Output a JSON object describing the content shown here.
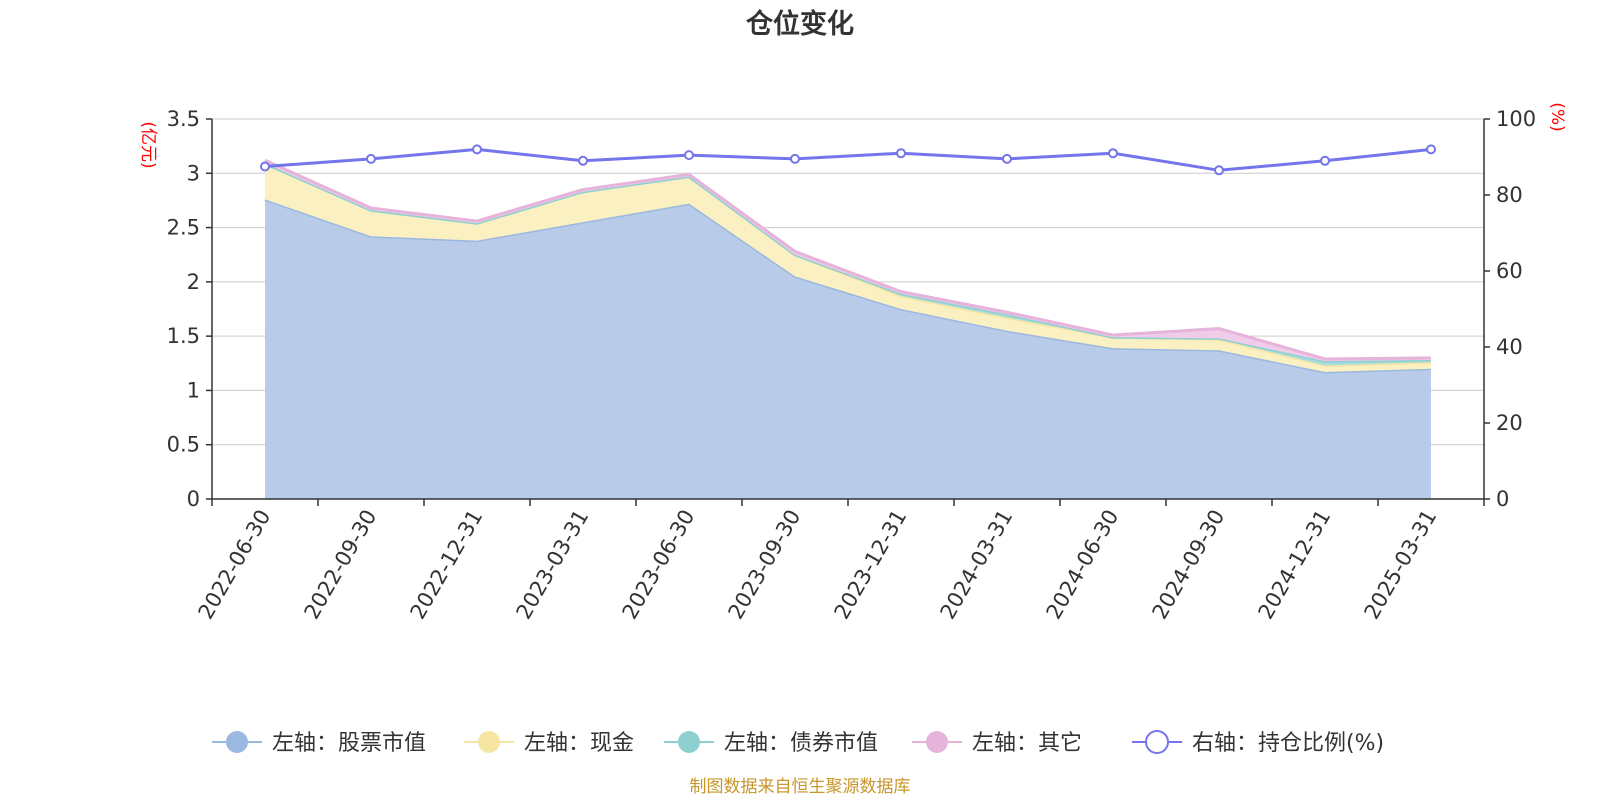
{
  "chart_data": {
    "type": "area",
    "title": "仓位变化",
    "source": "制图数据来自恒生聚源数据库",
    "categories": [
      "2022-06-30",
      "2022-09-30",
      "2022-12-31",
      "2023-03-31",
      "2023-06-30",
      "2023-09-30",
      "2023-12-31",
      "2024-03-31",
      "2024-06-30",
      "2024-09-30",
      "2024-12-31",
      "2025-03-31"
    ],
    "left_axis": {
      "unit": "(亿元)",
      "ylim": [
        0,
        3.5
      ],
      "ticks": [
        "0",
        "0.5",
        "1",
        "1.5",
        "2",
        "2.5",
        "3",
        "3.5"
      ]
    },
    "right_axis": {
      "unit": "(%)",
      "ylim": [
        0,
        100
      ],
      "ticks": [
        "0",
        "20",
        "40",
        "60",
        "80",
        "100"
      ]
    },
    "grid": true,
    "legend_position": "bottom",
    "series": [
      {
        "name": "左轴：股票市值",
        "axis": "left",
        "kind": "stacked-area",
        "color": "#9bb8e0",
        "fill": "#b8cce9",
        "values": [
          2.76,
          2.42,
          2.38,
          2.55,
          2.72,
          2.05,
          1.75,
          1.55,
          1.39,
          1.37,
          1.17,
          1.2
        ]
      },
      {
        "name": "左轴：现金",
        "axis": "left",
        "kind": "stacked-area",
        "color": "#f7e6a3",
        "fill": "#fbf0c2",
        "values": [
          0.33,
          0.24,
          0.16,
          0.28,
          0.25,
          0.2,
          0.12,
          0.12,
          0.1,
          0.1,
          0.06,
          0.06
        ]
      },
      {
        "name": "左轴：债券市值",
        "axis": "left",
        "kind": "stacked-area",
        "color": "#8ed0d0",
        "fill": "#a9dcdc",
        "values": [
          0,
          0,
          0,
          0,
          0,
          0,
          0.02,
          0.03,
          0,
          0.01,
          0.04,
          0.02
        ]
      },
      {
        "name": "左轴：其它",
        "axis": "left",
        "kind": "stacked-area",
        "color": "#e6b3da",
        "fill": "#f0cce8",
        "values": [
          0.03,
          0.02,
          0.02,
          0.02,
          0.02,
          0.03,
          0.02,
          0.02,
          0.02,
          0.09,
          0.02,
          0.02
        ]
      },
      {
        "name": "右轴：持仓比例(%)",
        "axis": "right",
        "kind": "line",
        "color": "#7474ec",
        "values": [
          87.5,
          89.5,
          92.0,
          89.0,
          90.5,
          89.5,
          91.0,
          89.5,
          91.0,
          86.5,
          89.0,
          92.0
        ]
      }
    ]
  }
}
